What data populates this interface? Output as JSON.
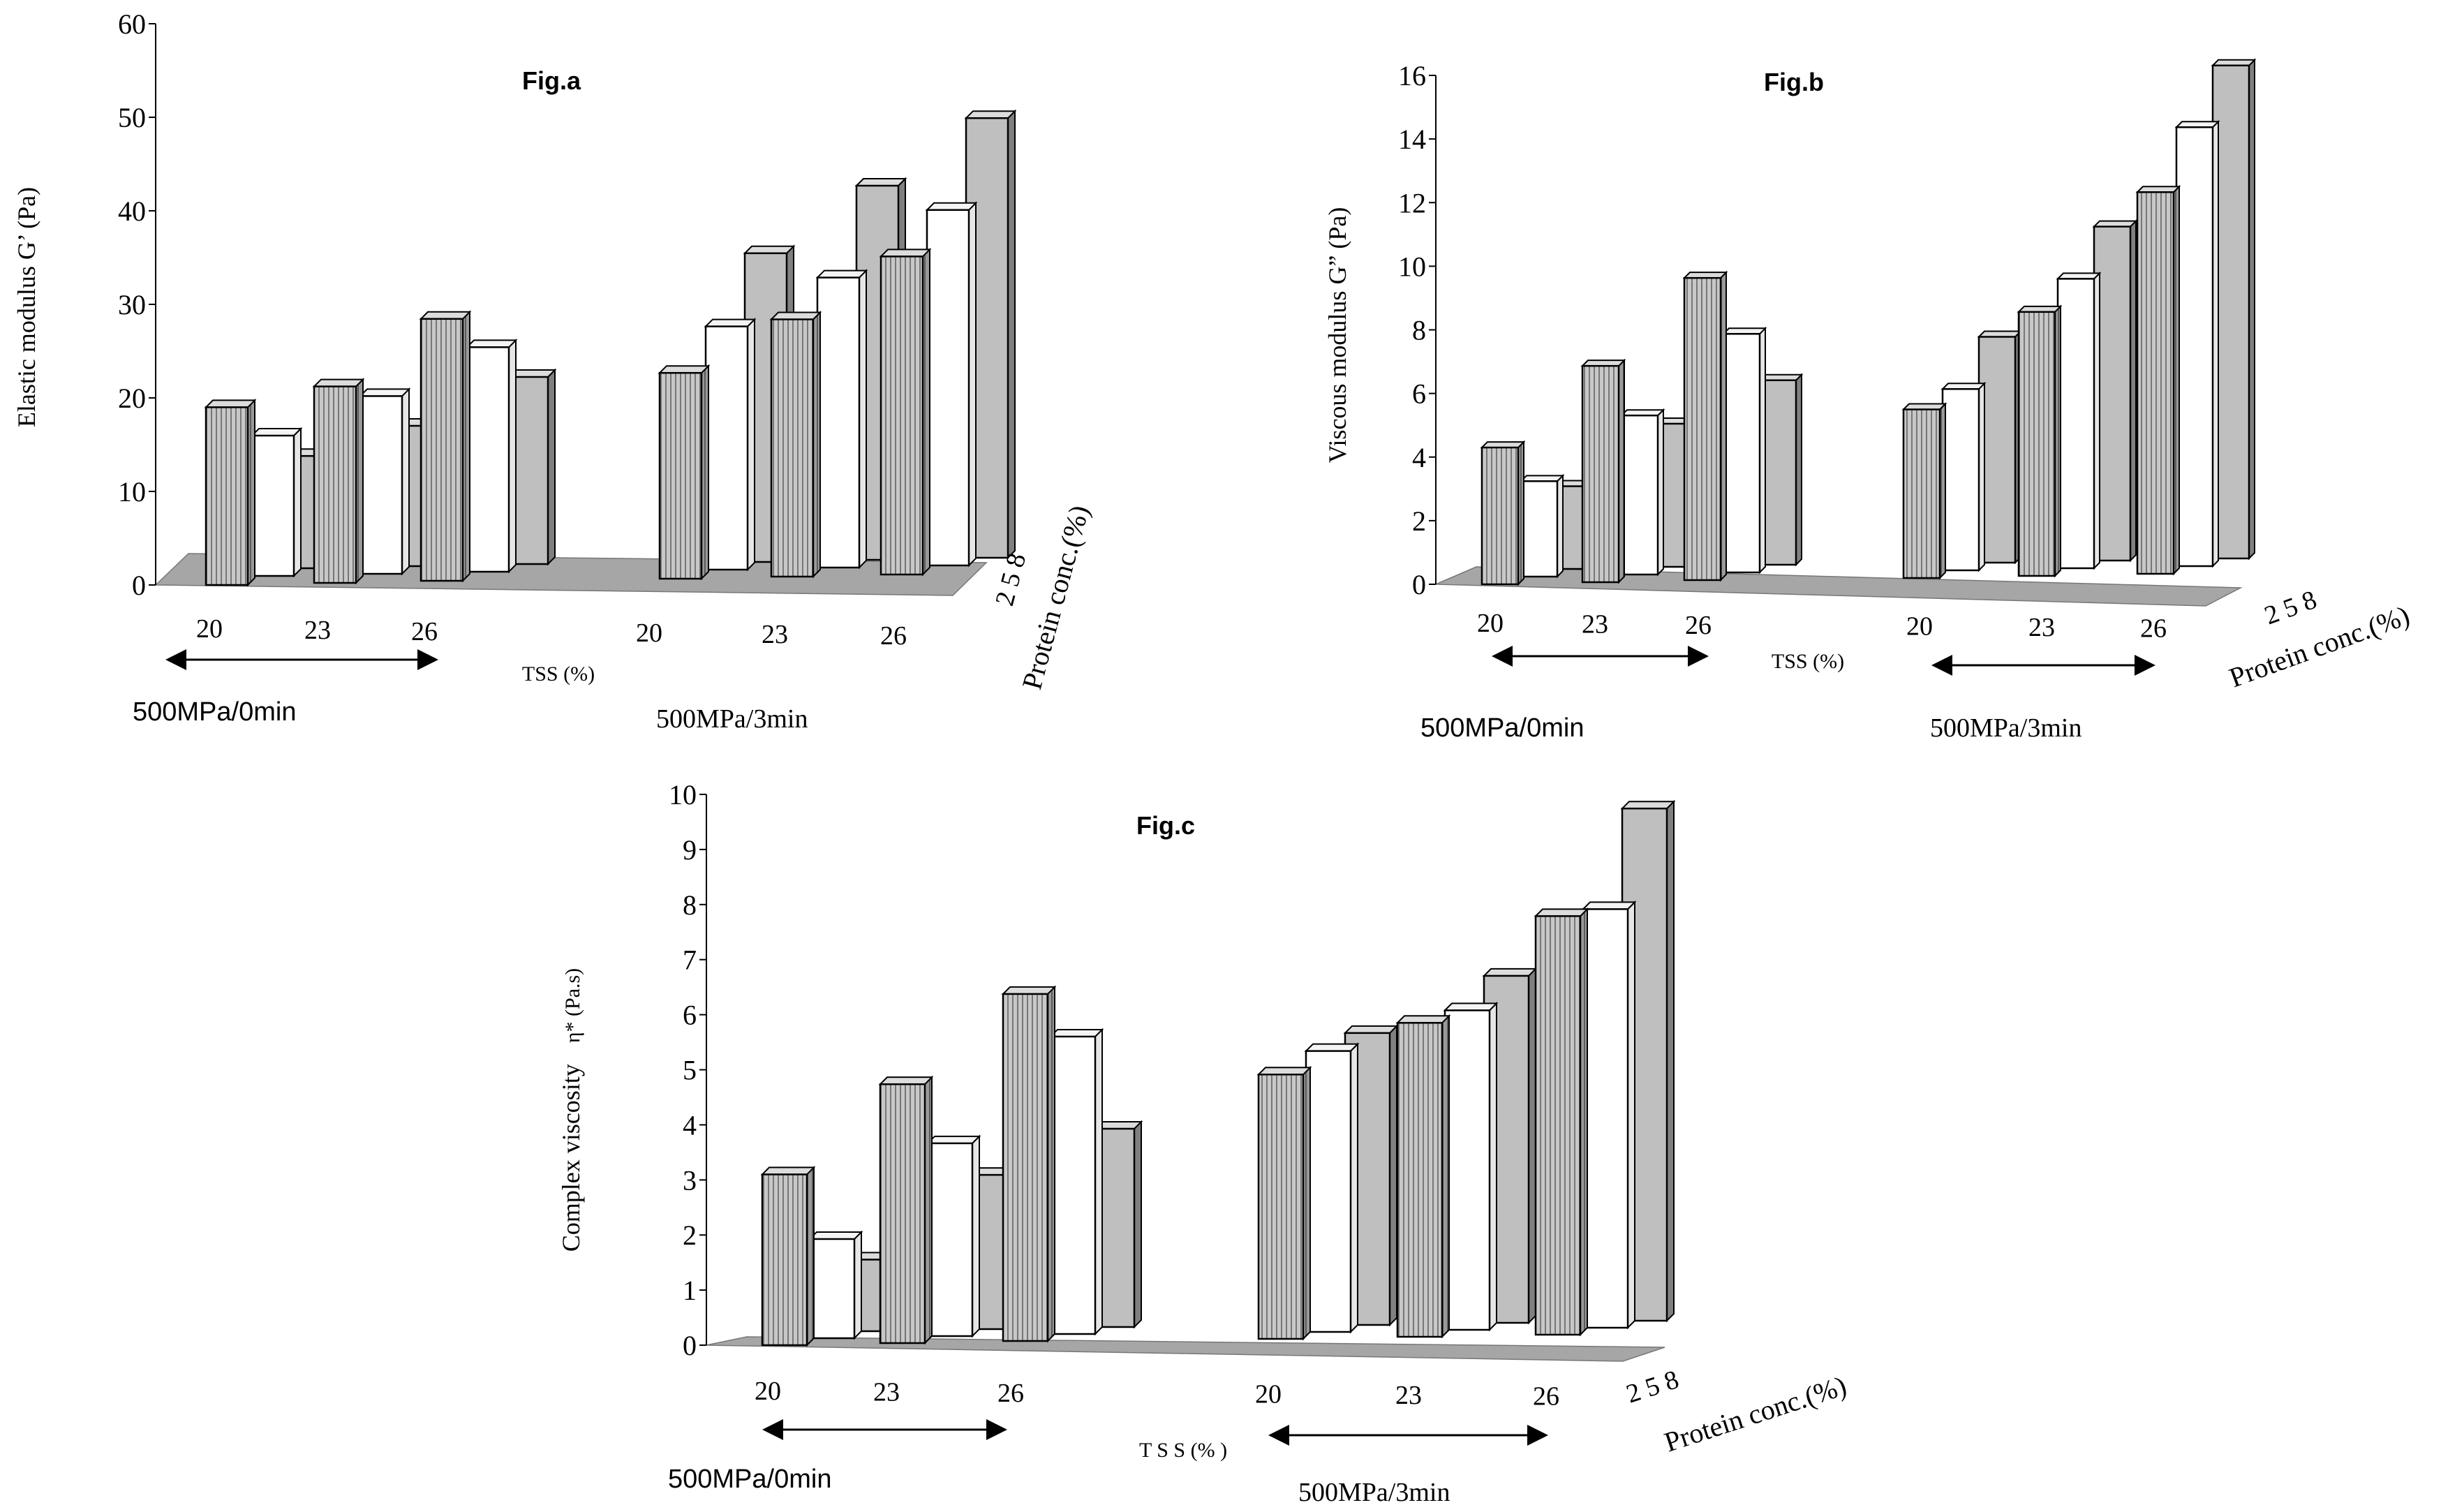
{
  "figure": {
    "colors": {
      "ink": "#000000",
      "floor": "#a6a6a6",
      "bar_gray": "#bfbfbf",
      "bar_gray_side": "#808080",
      "bar_white": "#ffffff",
      "bar_white_side": "#e6e6e6",
      "bar_striped": "#c8c8c8",
      "bar_striped_side": "#9a9a9a",
      "stripe_line": "#777777"
    }
  },
  "chart_data": [
    {
      "id": "a",
      "type": "bar",
      "title": "Fig.a",
      "ylabel": "Elastic modulus G’ (Pa)",
      "ylabel_unit": "",
      "ylim": [
        0,
        60
      ],
      "yticks": [
        "0",
        "10",
        "20",
        "30",
        "40",
        "50",
        "60"
      ],
      "categories": [
        "20",
        "23",
        "26",
        "20",
        "23",
        "26"
      ],
      "groups": [
        "500MPa/0min",
        "500MPa/3min"
      ],
      "xlabel": "TSS (%)",
      "depth_label": "2 5 8",
      "depth_axis_label": "Protein conc.(%)",
      "series": [
        {
          "name": "2",
          "values": [
            19,
            21,
            28,
            22,
            27.5,
            34
          ]
        },
        {
          "name": "5",
          "values": [
            15,
            19,
            24,
            26,
            31,
            38
          ]
        },
        {
          "name": "8",
          "values": [
            12,
            15,
            20,
            33,
            40,
            47
          ]
        }
      ]
    },
    {
      "id": "b",
      "type": "bar",
      "title": "Fig.b",
      "ylabel": "Viscous modulus G” (Pa)",
      "ylabel_unit": "",
      "ylim": [
        0,
        16
      ],
      "yticks": [
        "0",
        "2",
        "4",
        "6",
        "8",
        "10",
        "12",
        "14",
        "16"
      ],
      "categories": [
        "20",
        "23",
        "26",
        "20",
        "23",
        "26"
      ],
      "groups": [
        "500MPa/0min",
        "500MPa/3min"
      ],
      "xlabel": "TSS (%)",
      "depth_label": "2 5 8",
      "depth_axis_label": "Protein conc.(%)",
      "series": [
        {
          "name": "2",
          "values": [
            4.3,
            6.8,
            9.5,
            5.3,
            8.3,
            12.0
          ]
        },
        {
          "name": "5",
          "values": [
            3.0,
            5.0,
            7.5,
            5.7,
            9.1,
            13.8
          ]
        },
        {
          "name": "8",
          "values": [
            2.6,
            4.5,
            5.8,
            7.1,
            10.5,
            15.5
          ]
        }
      ]
    },
    {
      "id": "c",
      "type": "bar",
      "title": "Fig.c",
      "ylabel": "Complex viscosity",
      "ylabel_unit": "η* (Pa.s)",
      "ylim": [
        0,
        10
      ],
      "yticks": [
        "0",
        "1",
        "2",
        "3",
        "4",
        "5",
        "6",
        "7",
        "8",
        "9",
        "10"
      ],
      "categories": [
        "20",
        "23",
        "26",
        "20",
        "23",
        "26"
      ],
      "groups": [
        "500MPa/0min",
        "500MPa/3min"
      ],
      "xlabel": "T S S  (% )",
      "depth_label": "2  5  8",
      "depth_axis_label": "Protein conc.(%)",
      "series": [
        {
          "name": "2",
          "values": [
            3.1,
            4.7,
            6.3,
            4.8,
            5.7,
            7.6
          ]
        },
        {
          "name": "5",
          "values": [
            1.8,
            3.5,
            5.4,
            5.1,
            5.8,
            7.6
          ]
        },
        {
          "name": "8",
          "values": [
            1.3,
            2.8,
            3.6,
            5.3,
            6.3,
            9.3
          ]
        }
      ]
    }
  ]
}
